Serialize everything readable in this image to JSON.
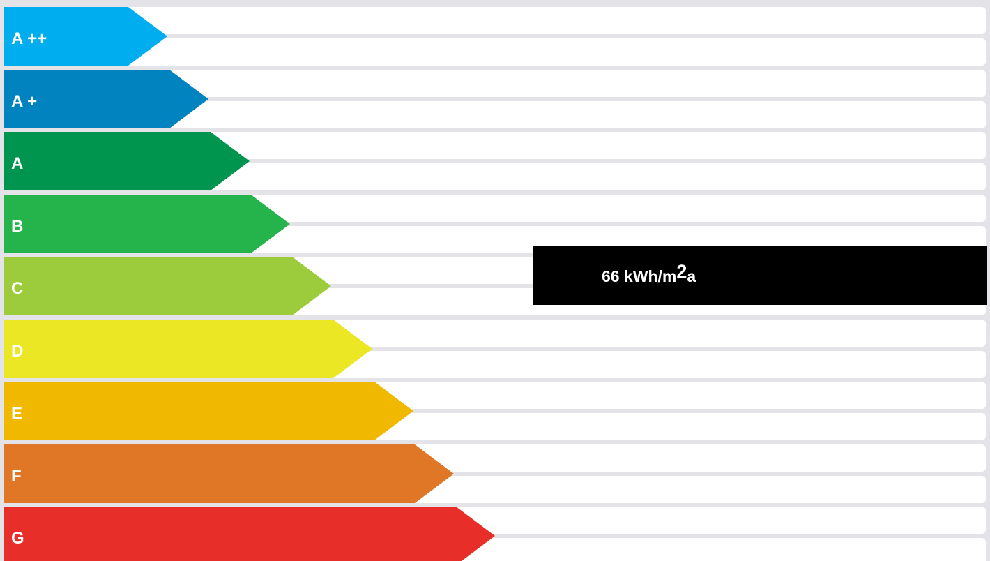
{
  "chart_data": {
    "type": "bar",
    "title": "",
    "classes": [
      {
        "label": "A ++",
        "color": "#00aeef",
        "text_color": "#ffffff"
      },
      {
        "label": "A +",
        "color": "#0083bf",
        "text_color": "#ffffff"
      },
      {
        "label": "A",
        "color": "#00954f",
        "text_color": "#ffffff"
      },
      {
        "label": "B",
        "color": "#25b34b",
        "text_color": "#ffffff"
      },
      {
        "label": "C",
        "color": "#9ccb3b",
        "text_color": "#ffffff"
      },
      {
        "label": "D",
        "color": "#ebe724",
        "text_color": "#ffffff"
      },
      {
        "label": "E",
        "color": "#f1b800",
        "text_color": "#ffffff"
      },
      {
        "label": "F",
        "color": "#e07726",
        "text_color": "#ffffff"
      },
      {
        "label": "G",
        "color": "#e82e29",
        "text_color": "#ffffff"
      }
    ],
    "indicator": {
      "value": "66",
      "unit_prefix": " kWh/m",
      "unit_exponent": "2",
      "unit_suffix": "a",
      "rating": "C",
      "color": "#000000"
    }
  }
}
